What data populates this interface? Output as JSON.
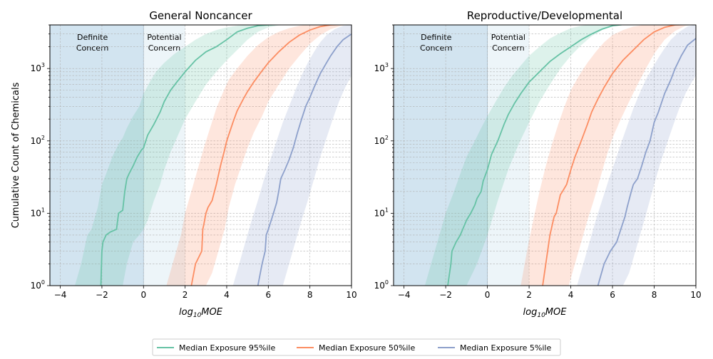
{
  "chart_data": [
    {
      "type": "line",
      "title": "General Noncancer",
      "xlabel": "log10MOE",
      "ylabel": "Cumulative Count of Chemicals",
      "xlim": [
        -4.5,
        10
      ],
      "ylim": [
        1,
        4000
      ],
      "yscale": "log",
      "x_ticks": [
        -4,
        -2,
        0,
        2,
        4,
        6,
        8,
        10
      ],
      "y_ticks": [
        1,
        10,
        100,
        1000
      ],
      "grid": true,
      "regions": [
        {
          "label": "Definite\nConcern",
          "x_range": [
            -4.5,
            0
          ],
          "color": "#1f77b4",
          "opacity": 0.2
        },
        {
          "label": "Potential\nConcern",
          "x_range": [
            0,
            2
          ],
          "color": "#a6cee3",
          "opacity": 0.2
        }
      ],
      "series": [
        {
          "name": "Median Exposure 95%ile",
          "color": "#66c2a5",
          "x": [
            -2.05,
            -2.0,
            -1.95,
            -1.8,
            -1.6,
            -1.3,
            -1.2,
            -1.0,
            -0.9,
            -0.8,
            -0.7,
            -0.5,
            -0.3,
            -0.1,
            0.0,
            0.2,
            0.5,
            0.8,
            1.0,
            1.3,
            1.6,
            2.0,
            2.5,
            3.0,
            3.5,
            4.0,
            4.5,
            5.0,
            5.5,
            6.0,
            6.5,
            7.0
          ],
          "y": [
            1,
            3,
            4,
            5,
            5.5,
            6,
            10,
            11,
            20,
            30,
            35,
            45,
            60,
            75,
            80,
            120,
            170,
            250,
            350,
            500,
            650,
            900,
            1300,
            1700,
            2000,
            2500,
            3200,
            3600,
            3900,
            4000,
            4050,
            4050
          ],
          "lower_x": [
            -2.05,
            -1.9,
            -1.6,
            -1.3,
            -1.0,
            -0.8,
            -0.5,
            -0.2,
            0.0,
            0.2,
            0.5,
            0.8,
            1.0,
            1.3,
            1.6,
            2.0,
            2.5,
            3.0,
            3.5,
            4.0,
            4.5,
            5.0,
            5.5,
            6.0,
            6.5,
            7.5
          ],
          "lower_y": [
            1,
            1,
            1,
            1,
            1,
            2,
            4,
            5,
            6,
            8,
            15,
            25,
            40,
            70,
            110,
            200,
            350,
            600,
            900,
            1300,
            1800,
            2500,
            3200,
            3700,
            3950,
            4050
          ],
          "upper_x": [
            -3.3,
            -3.0,
            -2.7,
            -2.5,
            -2.2,
            -2.0,
            -1.8,
            -1.5,
            -1.2,
            -1.0,
            -0.8,
            -0.5,
            -0.2,
            0.0,
            0.3,
            0.6,
            1.0,
            1.5,
            2.0,
            2.5,
            3.0,
            3.5,
            4.0,
            4.5,
            5.0,
            5.5
          ],
          "upper_y": [
            1,
            2,
            5,
            6,
            12,
            25,
            35,
            60,
            90,
            110,
            150,
            220,
            300,
            450,
            650,
            900,
            1200,
            1600,
            2000,
            2500,
            3000,
            3400,
            3700,
            3900,
            4000,
            4050
          ]
        },
        {
          "name": "Median Exposure 50%ile",
          "color": "#fc8d62",
          "x": [
            2.3,
            2.5,
            2.8,
            2.85,
            2.9,
            3.0,
            3.1,
            3.3,
            3.5,
            3.7,
            3.9,
            4.0,
            4.3,
            4.5,
            4.8,
            5.0,
            5.3,
            5.6,
            6.0,
            6.5,
            7.0,
            7.5,
            8.0,
            8.5,
            9.0,
            9.5,
            10.0
          ],
          "y": [
            1,
            2,
            3,
            6,
            7,
            10,
            12,
            15,
            25,
            45,
            75,
            100,
            180,
            260,
            380,
            480,
            650,
            850,
            1200,
            1700,
            2300,
            2900,
            3400,
            3800,
            4000,
            4050,
            4050
          ],
          "lower_x": [
            3.0,
            3.3,
            3.6,
            3.9,
            4.1,
            4.4,
            4.7,
            5.0,
            5.3,
            5.7,
            6.0,
            6.5,
            7.0,
            7.5,
            8.0,
            8.5,
            9.0,
            9.5,
            10.0
          ],
          "lower_y": [
            1,
            1.5,
            3,
            6,
            12,
            25,
            45,
            80,
            130,
            220,
            350,
            600,
            1000,
            1500,
            2200,
            2900,
            3500,
            3900,
            4050
          ],
          "upper_x": [
            1.1,
            1.4,
            1.8,
            2.0,
            2.3,
            2.6,
            2.9,
            3.2,
            3.5,
            3.8,
            4.1,
            4.5,
            5.0,
            5.5,
            6.0,
            6.5,
            7.0,
            7.5,
            8.0,
            8.5
          ],
          "upper_y": [
            1,
            2,
            5,
            10,
            20,
            40,
            80,
            150,
            280,
            450,
            700,
            1000,
            1500,
            2100,
            2700,
            3200,
            3600,
            3900,
            4050,
            4050
          ]
        },
        {
          "name": "Median Exposure 5%ile",
          "color": "#8da0cb",
          "x": [
            5.5,
            5.7,
            5.85,
            5.9,
            6.0,
            6.2,
            6.4,
            6.5,
            6.6,
            6.8,
            7.0,
            7.2,
            7.4,
            7.6,
            7.8,
            8.0,
            8.2,
            8.5,
            8.8,
            9.0,
            9.3,
            9.6,
            10.0
          ],
          "y": [
            1,
            2,
            3,
            5,
            6,
            9,
            14,
            20,
            30,
            40,
            55,
            80,
            130,
            200,
            300,
            400,
            550,
            850,
            1200,
            1500,
            2000,
            2500,
            3000
          ],
          "lower_x": [
            6.7,
            7.0,
            7.3,
            7.6,
            7.9,
            8.2,
            8.5,
            8.8,
            9.1,
            9.4,
            9.7,
            10.0
          ],
          "lower_y": [
            1,
            2,
            4,
            8,
            15,
            30,
            60,
            110,
            200,
            350,
            550,
            800
          ],
          "upper_x": [
            4.3,
            4.6,
            4.9,
            5.2,
            5.5,
            5.8,
            6.1,
            6.4,
            6.7,
            7.0,
            7.3,
            7.6,
            7.9,
            8.2,
            8.5,
            8.8,
            9.2,
            9.6,
            10.0
          ],
          "upper_y": [
            1,
            2,
            4,
            8,
            15,
            30,
            55,
            100,
            180,
            300,
            500,
            800,
            1200,
            1700,
            2300,
            2900,
            3500,
            3900,
            4050
          ]
        }
      ]
    },
    {
      "type": "line",
      "title": "Reproductive/Developmental",
      "xlabel": "log10MOE",
      "ylabel": "",
      "xlim": [
        -4.5,
        10
      ],
      "ylim": [
        1,
        4000
      ],
      "yscale": "log",
      "x_ticks": [
        -4,
        -2,
        0,
        2,
        4,
        6,
        8,
        10
      ],
      "y_ticks": [
        1,
        10,
        100,
        1000
      ],
      "grid": true,
      "regions": [
        {
          "label": "Definite\nConcern",
          "x_range": [
            -4.5,
            0
          ],
          "color": "#1f77b4",
          "opacity": 0.2
        },
        {
          "label": "Potential\nConcern",
          "x_range": [
            0,
            2
          ],
          "color": "#a6cee3",
          "opacity": 0.2
        }
      ],
      "series": [
        {
          "name": "Median Exposure 95%ile",
          "color": "#66c2a5",
          "x": [
            -1.9,
            -1.75,
            -1.7,
            -1.5,
            -1.3,
            -1.0,
            -0.8,
            -0.6,
            -0.5,
            -0.3,
            -0.2,
            0.0,
            0.2,
            0.5,
            0.8,
            1.0,
            1.3,
            1.6,
            2.0,
            2.5,
            3.0,
            3.5,
            4.0,
            4.5,
            5.0,
            5.5,
            6.0,
            6.5,
            7.0
          ],
          "y": [
            1,
            2,
            3,
            4,
            5,
            8,
            10,
            13,
            16,
            20,
            28,
            40,
            65,
            100,
            170,
            230,
            330,
            450,
            650,
            900,
            1250,
            1600,
            2000,
            2500,
            3000,
            3500,
            3900,
            4050,
            4050
          ],
          "lower_x": [
            -1.9,
            -1.5,
            -1.0,
            -0.5,
            0.0,
            0.5,
            1.0,
            1.5,
            2.0,
            2.5,
            3.0,
            3.5,
            4.0,
            4.5,
            5.0,
            5.5,
            6.0,
            7.0
          ],
          "lower_y": [
            1,
            1,
            1,
            2,
            5,
            15,
            40,
            90,
            180,
            350,
            600,
            1000,
            1500,
            2100,
            2800,
            3400,
            3900,
            4050
          ],
          "upper_x": [
            -3.0,
            -2.7,
            -2.3,
            -2.0,
            -1.6,
            -1.3,
            -1.0,
            -0.6,
            -0.3,
            0.0,
            0.4,
            0.8,
            1.2,
            1.6,
            2.0,
            2.5,
            3.0,
            3.5,
            4.0,
            4.5,
            5.0,
            5.5
          ],
          "upper_y": [
            1,
            2,
            5,
            10,
            20,
            35,
            60,
            100,
            150,
            220,
            350,
            550,
            800,
            1100,
            1500,
            2000,
            2600,
            3100,
            3600,
            3900,
            4050,
            4050
          ]
        },
        {
          "name": "Median Exposure 50%ile",
          "color": "#fc8d62",
          "x": [
            2.65,
            2.8,
            3.0,
            3.2,
            3.3,
            3.5,
            3.6,
            3.8,
            4.0,
            4.2,
            4.5,
            4.8,
            5.0,
            5.3,
            5.6,
            6.0,
            6.5,
            7.0,
            7.5,
            8.0,
            8.5,
            9.0,
            9.5,
            10.0
          ],
          "y": [
            1,
            2,
            5,
            9,
            10,
            18,
            20,
            25,
            40,
            60,
            100,
            170,
            250,
            380,
            550,
            850,
            1300,
            1800,
            2500,
            3200,
            3700,
            4000,
            4050,
            4050
          ],
          "lower_x": [
            3.9,
            4.2,
            4.5,
            4.8,
            5.1,
            5.4,
            5.7,
            6.0,
            6.4,
            6.8,
            7.2,
            7.6,
            8.0,
            8.5,
            9.0,
            9.5,
            10.0
          ],
          "lower_y": [
            1,
            2,
            4,
            8,
            15,
            30,
            60,
            110,
            200,
            350,
            600,
            1000,
            1600,
            2500,
            3300,
            3900,
            4050
          ],
          "upper_x": [
            1.6,
            1.9,
            2.2,
            2.5,
            2.8,
            3.1,
            3.4,
            3.7,
            4.0,
            4.4,
            4.8,
            5.2,
            5.6,
            6.0,
            6.5,
            7.0,
            7.5,
            8.0,
            8.5
          ],
          "upper_y": [
            1,
            3,
            8,
            20,
            45,
            90,
            170,
            300,
            500,
            800,
            1200,
            1700,
            2300,
            2900,
            3400,
            3800,
            4000,
            4050,
            4050
          ]
        },
        {
          "name": "Median Exposure 5%ile",
          "color": "#8da0cb",
          "x": [
            5.3,
            5.6,
            5.9,
            6.2,
            6.4,
            6.6,
            6.7,
            6.9,
            7.0,
            7.2,
            7.4,
            7.6,
            7.8,
            8.0,
            8.2,
            8.5,
            8.8,
            9.0,
            9.3,
            9.6,
            10.0
          ],
          "y": [
            1,
            2,
            3,
            4,
            6,
            9,
            12,
            20,
            25,
            30,
            45,
            70,
            100,
            180,
            250,
            450,
            700,
            1000,
            1500,
            2100,
            2600
          ],
          "lower_x": [
            6.5,
            6.8,
            7.1,
            7.4,
            7.7,
            8.0,
            8.3,
            8.6,
            8.9,
            9.2,
            9.5,
            9.8,
            10.0
          ],
          "lower_y": [
            1,
            1.5,
            3,
            6,
            12,
            25,
            50,
            90,
            160,
            280,
            450,
            650,
            800
          ],
          "upper_x": [
            4.3,
            4.6,
            4.9,
            5.2,
            5.5,
            5.8,
            6.1,
            6.4,
            6.7,
            7.0,
            7.3,
            7.6,
            7.9,
            8.2,
            8.5,
            8.8,
            9.2,
            9.6,
            10.0
          ],
          "upper_y": [
            1,
            2,
            4,
            8,
            15,
            28,
            50,
            90,
            160,
            280,
            450,
            700,
            1000,
            1400,
            1900,
            2500,
            3200,
            3800,
            4050
          ]
        }
      ]
    }
  ]
}
